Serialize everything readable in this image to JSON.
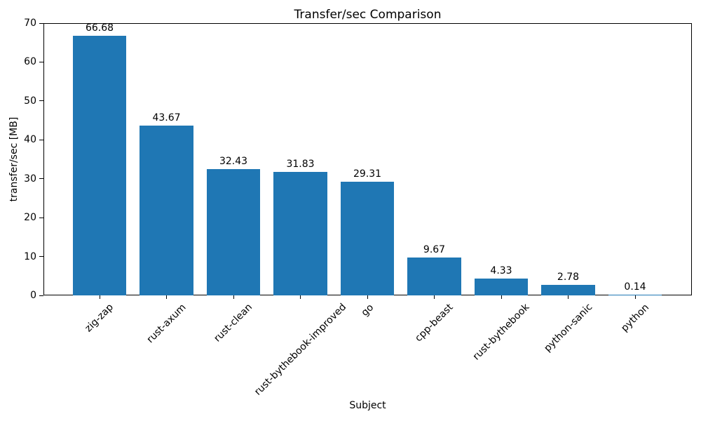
{
  "chart_data": {
    "type": "bar",
    "title": "Transfer/sec Comparison",
    "xlabel": "Subject",
    "ylabel": "transfer/sec [MB]",
    "categories": [
      "zig-zap",
      "rust-axum",
      "rust-clean",
      "rust-bythebook-improved",
      "go",
      "cpp-beast",
      "rust-bythebook",
      "python-sanic",
      "python"
    ],
    "values": [
      66.68,
      43.67,
      32.43,
      31.83,
      29.31,
      9.67,
      4.33,
      2.78,
      0.14
    ],
    "bar_value_labels": [
      "66.68",
      "43.67",
      "32.43",
      "31.83",
      "29.31",
      "9.67",
      "4.33",
      "2.78",
      "0.14"
    ],
    "ylim": [
      0,
      70
    ],
    "yticks": [
      0,
      10,
      20,
      30,
      40,
      50,
      60,
      70
    ],
    "bar_color": "#1f77b4",
    "axis_color": "#000000",
    "background_color": "#ffffff",
    "grid": false,
    "legend": false,
    "xtick_rotation_deg": 45
  }
}
